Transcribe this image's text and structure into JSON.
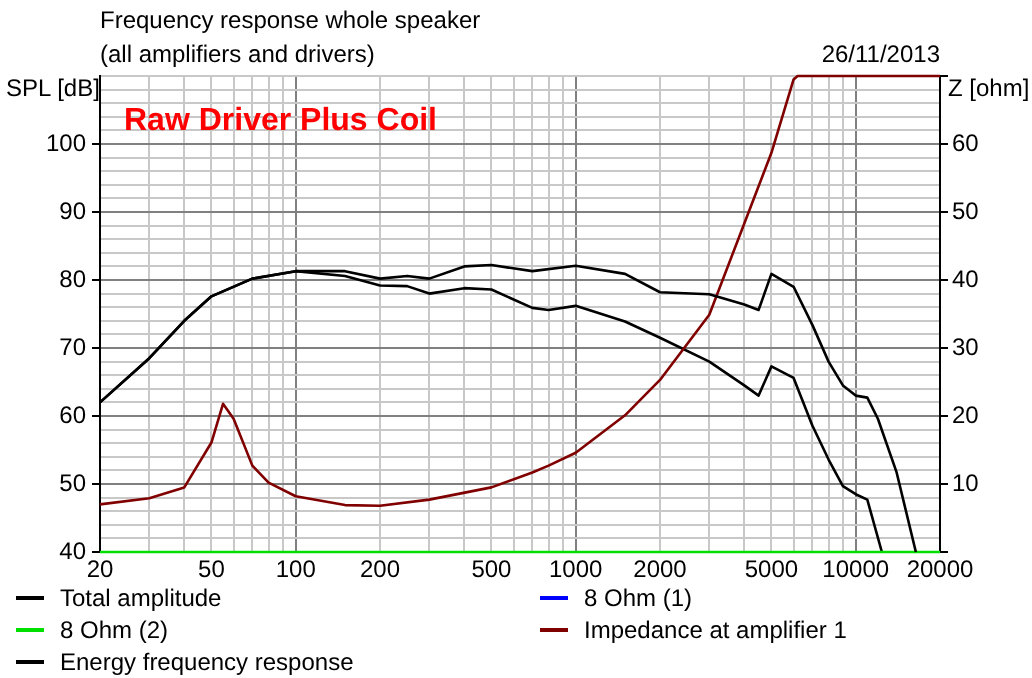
{
  "chart_data": {
    "type": "line",
    "title": "Frequency response whole speaker",
    "subtitle": "(all amplifiers and drivers)",
    "ylabel": "SPL [dB]",
    "y2label": "Z [ohm]",
    "annotations": [
      "Raw Driver Plus Coil",
      "26/11/2013"
    ],
    "log": "x",
    "grid": true,
    "legend": "bottom",
    "marker": "none",
    "xlim": [
      20,
      20000
    ],
    "xticks": [
      20,
      {
        "value": 30,
        "label": null
      },
      {
        "value": 40,
        "label": null
      },
      50,
      {
        "value": 60,
        "label": null
      },
      {
        "value": 70,
        "label": null
      },
      {
        "value": 80,
        "label": null
      },
      {
        "value": 90,
        "label": null
      },
      100,
      200,
      {
        "value": 300,
        "label": null
      },
      {
        "value": 400,
        "label": null
      },
      500,
      {
        "value": 600,
        "label": null
      },
      {
        "value": 700,
        "label": null
      },
      {
        "value": 800,
        "label": null
      },
      {
        "value": 900,
        "label": null
      },
      1000,
      2000,
      {
        "value": 3000,
        "label": null
      },
      {
        "value": 4000,
        "label": null
      },
      5000,
      {
        "value": 6000,
        "label": null
      },
      {
        "value": 7000,
        "label": null
      },
      {
        "value": 8000,
        "label": null
      },
      {
        "value": 9000,
        "label": null
      },
      10000,
      20000
    ],
    "ylim": [
      40,
      110
    ],
    "yticks": [
      40,
      {
        "value": 42,
        "label": null
      },
      {
        "value": 44,
        "label": null
      },
      {
        "value": 46,
        "label": null
      },
      {
        "value": 48,
        "label": null
      },
      50,
      {
        "value": 52,
        "label": null
      },
      {
        "value": 54,
        "label": null
      },
      {
        "value": 56,
        "label": null
      },
      {
        "value": 58,
        "label": null
      },
      60,
      {
        "value": 62,
        "label": null
      },
      {
        "value": 64,
        "label": null
      },
      {
        "value": 66,
        "label": null
      },
      {
        "value": 68,
        "label": null
      },
      70,
      {
        "value": 72,
        "label": null
      },
      {
        "value": 74,
        "label": null
      },
      {
        "value": 76,
        "label": null
      },
      {
        "value": 78,
        "label": null
      },
      80,
      {
        "value": 82,
        "label": null
      },
      {
        "value": 84,
        "label": null
      },
      {
        "value": 86,
        "label": null
      },
      {
        "value": 88,
        "label": null
      },
      90,
      {
        "value": 92,
        "label": null
      },
      {
        "value": 94,
        "label": null
      },
      {
        "value": 96,
        "label": null
      },
      {
        "value": 98,
        "label": null
      },
      100,
      {
        "value": 102,
        "label": null
      },
      {
        "value": 104,
        "label": null
      },
      {
        "value": 106,
        "label": null
      },
      {
        "value": 108,
        "label": null
      },
      {
        "value": 110,
        "label": null
      }
    ],
    "y2lim": [
      0,
      70
    ],
    "y2ticks": [
      {
        "value": 0,
        "label": null
      },
      10,
      20,
      30,
      40,
      50,
      60,
      {
        "value": 70,
        "label": null
      }
    ],
    "series": [
      {
        "name": "Total amplitude",
        "color": "#000000",
        "x": [
          20,
          30,
          40,
          50,
          70,
          100,
          150,
          200,
          250,
          300,
          400,
          500,
          700,
          1000,
          1500,
          2000,
          3000,
          4000,
          4500,
          5000,
          6000,
          7000,
          8000,
          9000,
          10000,
          11000,
          12000,
          14000,
          16400
        ],
        "values": [
          62,
          68.5,
          74,
          77.6,
          80.2,
          81.3,
          81.3,
          80.2,
          80.6,
          80.2,
          82,
          82.2,
          81.3,
          82.1,
          80.9,
          78.2,
          77.9,
          76.4,
          75.6,
          80.9,
          79,
          73.4,
          68,
          64.5,
          63,
          62.7,
          59.6,
          51.7,
          40
        ]
      },
      {
        "name": "8 Ohm (1)",
        "color": "#0000ff"
      },
      {
        "name": "8 Ohm (2)",
        "color": "#00e000",
        "x": [
          20,
          20000
        ],
        "values": [
          40,
          40
        ]
      },
      {
        "name": "Impedance at amplifier 1",
        "axis": "y2",
        "color": "#800000",
        "x": [
          20,
          30,
          40,
          50,
          55,
          60,
          70,
          80,
          100,
          150,
          200,
          300,
          500,
          700,
          800,
          1000,
          1500,
          2000,
          3000,
          4000,
          5000,
          6000,
          6200,
          20000
        ],
        "values": [
          7,
          7.9,
          9.5,
          16.1,
          21.8,
          19.6,
          12.7,
          10.2,
          8.2,
          6.9,
          6.8,
          7.7,
          9.5,
          11.7,
          12.7,
          14.6,
          20.1,
          25.3,
          34.9,
          48.3,
          58.7,
          69.5,
          70,
          70
        ]
      },
      {
        "name": "Energy frequency response",
        "color": "#000000",
        "x": [
          20,
          30,
          40,
          50,
          70,
          100,
          150,
          200,
          250,
          300,
          400,
          500,
          700,
          800,
          1000,
          1500,
          2000,
          3000,
          4000,
          4500,
          5000,
          6000,
          7000,
          8000,
          9000,
          10000,
          11000,
          12400
        ],
        "values": [
          62,
          68.5,
          74,
          77.6,
          80.2,
          81.3,
          80.6,
          79.2,
          79.1,
          78,
          78.8,
          78.6,
          75.9,
          75.6,
          76.2,
          73.9,
          71.5,
          68,
          64.5,
          63,
          67.3,
          65.6,
          58.6,
          53.6,
          49.7,
          48.5,
          47.7,
          40
        ]
      }
    ]
  }
}
